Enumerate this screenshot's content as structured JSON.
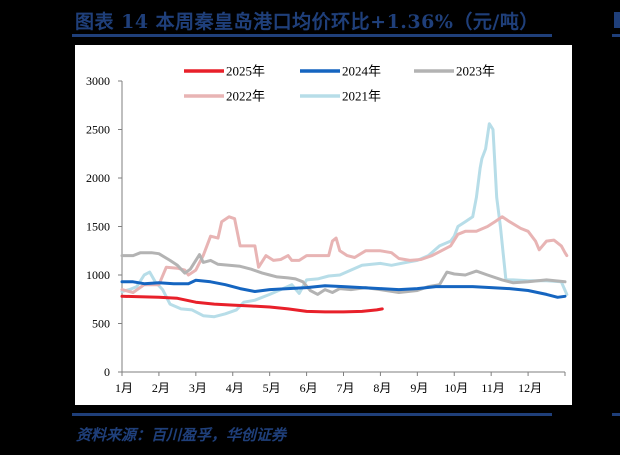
{
  "header": {
    "title": "图表 14   本周秦皇岛港口均价环比+1.36%（元/吨）"
  },
  "footer": {
    "source": "资料来源：百川盈孚，华创证券"
  },
  "colors": {
    "brand": "#1f3f7a",
    "s2025": "#e8202a",
    "s2024": "#1565c0",
    "s2023": "#b3b3b3",
    "s2022": "#e8b4b4",
    "s2021": "#b7dde8"
  },
  "chart_data": {
    "type": "line",
    "title": "本周秦皇岛港口均价环比+1.36%（元/吨）",
    "xlabel": "",
    "ylabel": "",
    "ylim": [
      0,
      3000
    ],
    "yticks": [
      0,
      500,
      1000,
      1500,
      2000,
      2500,
      3000
    ],
    "categories": [
      "1月",
      "2月",
      "3月",
      "4月",
      "5月",
      "6月",
      "7月",
      "8月",
      "9月",
      "10月",
      "11月",
      "12月"
    ],
    "grid": false,
    "legend_position": "top",
    "x_unit": "month index (0 = Jan 1, 12 = Dec 31)",
    "series": [
      {
        "name": "2025年",
        "color": "#e8202a",
        "points": [
          [
            0,
            780
          ],
          [
            0.5,
            775
          ],
          [
            1,
            770
          ],
          [
            1.5,
            760
          ],
          [
            2,
            720
          ],
          [
            2.5,
            700
          ],
          [
            3,
            690
          ],
          [
            3.5,
            680
          ],
          [
            4,
            670
          ],
          [
            4.5,
            650
          ],
          [
            5,
            625
          ],
          [
            5.5,
            620
          ],
          [
            6,
            620
          ],
          [
            6.5,
            625
          ],
          [
            6.9,
            640
          ],
          [
            7.05,
            650
          ]
        ]
      },
      {
        "name": "2024年",
        "color": "#1565c0",
        "points": [
          [
            0,
            930
          ],
          [
            0.3,
            930
          ],
          [
            0.6,
            910
          ],
          [
            1,
            920
          ],
          [
            1.4,
            910
          ],
          [
            1.8,
            910
          ],
          [
            2,
            945
          ],
          [
            2.4,
            930
          ],
          [
            2.8,
            900
          ],
          [
            3.2,
            860
          ],
          [
            3.6,
            830
          ],
          [
            4,
            850
          ],
          [
            4.5,
            860
          ],
          [
            5,
            870
          ],
          [
            5.5,
            890
          ],
          [
            6,
            880
          ],
          [
            6.5,
            870
          ],
          [
            7,
            860
          ],
          [
            7.5,
            850
          ],
          [
            8,
            860
          ],
          [
            8.5,
            880
          ],
          [
            9,
            880
          ],
          [
            9.5,
            880
          ],
          [
            10,
            870
          ],
          [
            10.5,
            860
          ],
          [
            11,
            840
          ],
          [
            11.5,
            800
          ],
          [
            11.8,
            770
          ],
          [
            12,
            780
          ]
        ]
      },
      {
        "name": "2023年",
        "color": "#b3b3b3",
        "points": [
          [
            0,
            1200
          ],
          [
            0.3,
            1200
          ],
          [
            0.5,
            1230
          ],
          [
            0.8,
            1230
          ],
          [
            1,
            1220
          ],
          [
            1.3,
            1150
          ],
          [
            1.5,
            1100
          ],
          [
            1.7,
            1020
          ],
          [
            1.85,
            1060
          ],
          [
            2,
            1150
          ],
          [
            2.1,
            1210
          ],
          [
            2.2,
            1130
          ],
          [
            2.4,
            1150
          ],
          [
            2.6,
            1110
          ],
          [
            2.9,
            1100
          ],
          [
            3.2,
            1090
          ],
          [
            3.5,
            1060
          ],
          [
            3.8,
            1020
          ],
          [
            4,
            1000
          ],
          [
            4.2,
            980
          ],
          [
            4.5,
            970
          ],
          [
            4.7,
            960
          ],
          [
            4.9,
            930
          ],
          [
            5.1,
            840
          ],
          [
            5.3,
            800
          ],
          [
            5.5,
            850
          ],
          [
            5.7,
            820
          ],
          [
            5.9,
            860
          ],
          [
            6.2,
            850
          ],
          [
            6.6,
            870
          ],
          [
            7,
            850
          ],
          [
            7.5,
            820
          ],
          [
            8,
            840
          ],
          [
            8.3,
            880
          ],
          [
            8.6,
            900
          ],
          [
            8.8,
            1030
          ],
          [
            9,
            1010
          ],
          [
            9.3,
            1000
          ],
          [
            9.6,
            1040
          ],
          [
            9.9,
            1000
          ],
          [
            10.3,
            950
          ],
          [
            10.6,
            920
          ],
          [
            11,
            930
          ],
          [
            11.5,
            950
          ],
          [
            12,
            930
          ]
        ]
      },
      {
        "name": "2022年",
        "color": "#e8b4b4",
        "points": [
          [
            0,
            850
          ],
          [
            0.3,
            820
          ],
          [
            0.6,
            900
          ],
          [
            1,
            900
          ],
          [
            1.2,
            1080
          ],
          [
            1.5,
            1070
          ],
          [
            1.7,
            1050
          ],
          [
            1.8,
            1000
          ],
          [
            2,
            1050
          ],
          [
            2.2,
            1200
          ],
          [
            2.4,
            1400
          ],
          [
            2.6,
            1380
          ],
          [
            2.7,
            1550
          ],
          [
            2.9,
            1600
          ],
          [
            3.05,
            1580
          ],
          [
            3.2,
            1300
          ],
          [
            3.4,
            1300
          ],
          [
            3.6,
            1300
          ],
          [
            3.7,
            1080
          ],
          [
            3.9,
            1200
          ],
          [
            4.1,
            1150
          ],
          [
            4.3,
            1160
          ],
          [
            4.5,
            1200
          ],
          [
            4.6,
            1150
          ],
          [
            4.8,
            1150
          ],
          [
            5,
            1200
          ],
          [
            5.4,
            1200
          ],
          [
            5.6,
            1200
          ],
          [
            5.7,
            1350
          ],
          [
            5.8,
            1380
          ],
          [
            5.9,
            1250
          ],
          [
            6.1,
            1200
          ],
          [
            6.3,
            1180
          ],
          [
            6.6,
            1250
          ],
          [
            7,
            1250
          ],
          [
            7.3,
            1230
          ],
          [
            7.5,
            1170
          ],
          [
            7.8,
            1150
          ],
          [
            8.1,
            1160
          ],
          [
            8.4,
            1200
          ],
          [
            8.7,
            1260
          ],
          [
            8.9,
            1300
          ],
          [
            9.1,
            1420
          ],
          [
            9.3,
            1450
          ],
          [
            9.6,
            1450
          ],
          [
            9.9,
            1500
          ],
          [
            10.1,
            1550
          ],
          [
            10.3,
            1600
          ],
          [
            10.5,
            1550
          ],
          [
            10.8,
            1480
          ],
          [
            11,
            1450
          ],
          [
            11.2,
            1350
          ],
          [
            11.3,
            1260
          ],
          [
            11.5,
            1350
          ],
          [
            11.7,
            1360
          ],
          [
            11.9,
            1300
          ],
          [
            12,
            1230
          ],
          [
            12.05,
            1200
          ]
        ]
      },
      {
        "name": "2021年",
        "color": "#b7dde8",
        "points": [
          [
            0,
            830
          ],
          [
            0.2,
            850
          ],
          [
            0.4,
            880
          ],
          [
            0.6,
            1000
          ],
          [
            0.75,
            1030
          ],
          [
            0.9,
            930
          ],
          [
            1.1,
            850
          ],
          [
            1.3,
            700
          ],
          [
            1.6,
            650
          ],
          [
            1.9,
            640
          ],
          [
            2.2,
            580
          ],
          [
            2.5,
            570
          ],
          [
            2.8,
            600
          ],
          [
            3.1,
            640
          ],
          [
            3.3,
            720
          ],
          [
            3.6,
            740
          ],
          [
            4,
            800
          ],
          [
            4.3,
            850
          ],
          [
            4.6,
            900
          ],
          [
            4.8,
            810
          ],
          [
            5,
            950
          ],
          [
            5.3,
            960
          ],
          [
            5.6,
            990
          ],
          [
            5.9,
            1000
          ],
          [
            6.2,
            1050
          ],
          [
            6.5,
            1100
          ],
          [
            7,
            1120
          ],
          [
            7.3,
            1100
          ],
          [
            7.7,
            1130
          ],
          [
            8,
            1150
          ],
          [
            8.3,
            1200
          ],
          [
            8.6,
            1300
          ],
          [
            8.9,
            1350
          ],
          [
            9,
            1400
          ],
          [
            9.1,
            1500
          ],
          [
            9.3,
            1550
          ],
          [
            9.5,
            1600
          ],
          [
            9.6,
            1800
          ],
          [
            9.7,
            2100
          ],
          [
            9.75,
            2200
          ],
          [
            9.85,
            2300
          ],
          [
            9.95,
            2560
          ],
          [
            10.05,
            2500
          ],
          [
            10.15,
            1800
          ],
          [
            10.25,
            1500
          ],
          [
            10.4,
            950
          ],
          [
            10.6,
            950
          ],
          [
            11,
            940
          ],
          [
            11.5,
            940
          ],
          [
            11.9,
            930
          ],
          [
            12.05,
            800
          ]
        ]
      }
    ]
  }
}
